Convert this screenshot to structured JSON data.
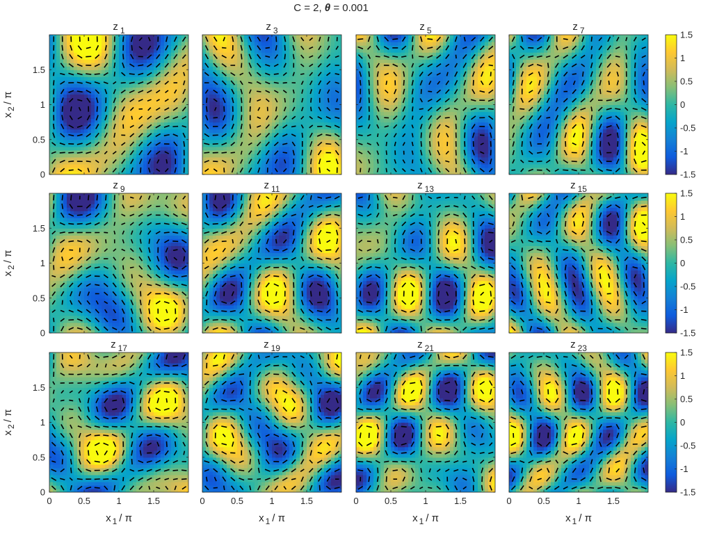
{
  "figure": {
    "title": "C = 2,   θ = 0.001",
    "title_prefix": "C = 2,   ",
    "title_symbol": "θ",
    "title_suffix": " = 0.001"
  },
  "chart_data": {
    "type": "heatmap",
    "title": "C = 2,   θ = 0.001",
    "layout": "3x4 grid of panels",
    "panels": [
      {
        "label": "z",
        "index": "1"
      },
      {
        "label": "z",
        "index": "3"
      },
      {
        "label": "z",
        "index": "5"
      },
      {
        "label": "z",
        "index": "7"
      },
      {
        "label": "z",
        "index": "9"
      },
      {
        "label": "z",
        "index": "11"
      },
      {
        "label": "z",
        "index": "13"
      },
      {
        "label": "z",
        "index": "15"
      },
      {
        "label": "z",
        "index": "17"
      },
      {
        "label": "z",
        "index": "19"
      },
      {
        "label": "z",
        "index": "21"
      },
      {
        "label": "z",
        "index": "23"
      }
    ],
    "x_axis": {
      "label_main": "x",
      "label_sub": "1",
      "label_tail": "/ π",
      "range": [
        0,
        2
      ],
      "ticks": [
        0,
        0.5,
        1,
        1.5
      ],
      "tick_labels": [
        "0",
        "0.5",
        "1",
        "1.5"
      ]
    },
    "y_axis": {
      "label_main": "x",
      "label_sub": "2",
      "label_tail": "/ π",
      "range": [
        0,
        2
      ],
      "ticks": [
        0,
        0.5,
        1,
        1.5
      ],
      "tick_labels": [
        "0",
        "0.5",
        "1",
        "1.5"
      ]
    },
    "colorbar": {
      "range": [
        -1.5,
        1.5
      ],
      "ticks": [
        1.5,
        1,
        0.5,
        0,
        -0.5,
        -1,
        -1.5
      ],
      "tick_labels": [
        "1.5",
        "1",
        "0.5",
        "0",
        "-0.5",
        "-1",
        "-1.5"
      ],
      "colormap": "parula",
      "colors": [
        "#352a87",
        "#0f5cdd",
        "#1481d6",
        "#06a4ca",
        "#2eb7a4",
        "#87bf77",
        "#d1bb59",
        "#fec832",
        "#f9fb0e"
      ]
    },
    "overlay": "black quiver arrows (vector field) on each panel",
    "colorbar_labels": [
      "1.5",
      "1",
      "0.5",
      "0",
      "-0.5",
      "-1",
      "-1.5"
    ]
  }
}
